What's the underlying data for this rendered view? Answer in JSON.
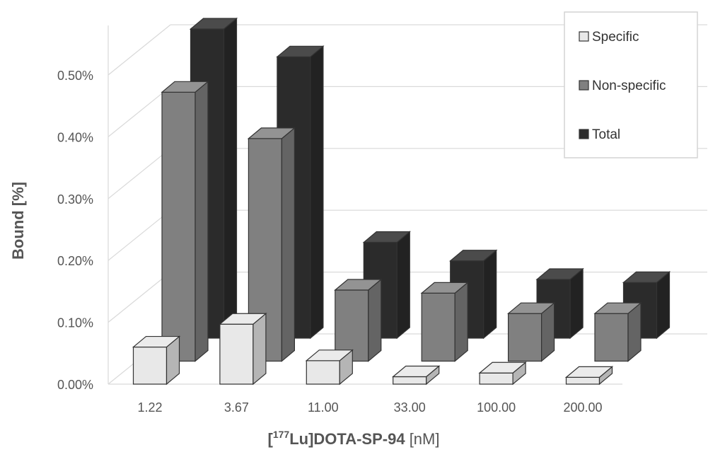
{
  "chart_data": {
    "type": "bar",
    "title": "",
    "ylabel": "Bound [%]",
    "xlabel": {
      "prefix": "[",
      "sup": "177",
      "main": "Lu]DOTA-SP-94",
      "unit": " [nM]"
    },
    "categories": [
      "1.22",
      "3.67",
      "11.00",
      "33.00",
      "100.00",
      "200.00"
    ],
    "yticks": [
      "0.00%",
      "0.10%",
      "0.20%",
      "0.30%",
      "0.40%",
      "0.50%"
    ],
    "ylim": [
      0,
      0.5
    ],
    "grid": true,
    "legend_position": "top-right",
    "series": [
      {
        "name": "Specific",
        "color": "#e8e8e8",
        "values": [
          0.06,
          0.097,
          0.038,
          0.012,
          0.018,
          0.011
        ]
      },
      {
        "name": "Non-specific",
        "color": "#808080",
        "values": [
          0.435,
          0.36,
          0.115,
          0.11,
          0.077,
          0.077
        ]
      },
      {
        "name": "Total",
        "color": "#2b2b2b",
        "values": [
          0.5,
          0.455,
          0.155,
          0.125,
          0.095,
          0.09
        ]
      }
    ]
  }
}
